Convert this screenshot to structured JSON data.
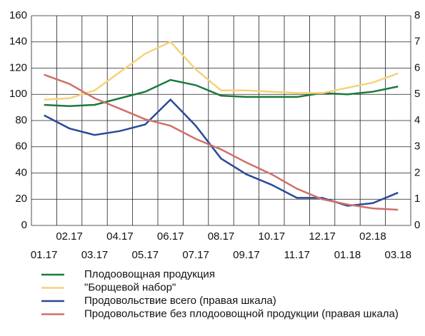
{
  "chart_data": {
    "type": "line",
    "categories": [
      "01.17",
      "02.17",
      "03.17",
      "04.17",
      "05.17",
      "06.17",
      "07.17",
      "08.17",
      "09.17",
      "10.17",
      "11.17",
      "12.17",
      "01.18",
      "02.18",
      "03.18"
    ],
    "series": [
      {
        "name": "Плодоовощная продукция",
        "color": "#1a7a3c",
        "values": [
          92,
          91,
          92,
          97,
          102,
          111,
          107,
          99,
          98,
          98,
          98,
          101,
          100,
          102,
          106
        ]
      },
      {
        "name": "\"Борщевой набор\"",
        "color": "#f5d27a",
        "values": [
          96,
          97,
          103,
          117,
          131,
          140,
          119,
          103,
          103,
          102,
          101,
          101,
          105,
          109,
          116
        ]
      },
      {
        "name": "Продовольствие всего (правая шкала)",
        "color": "#2a4a9a",
        "axis": "y2",
        "values": [
          4.2,
          3.7,
          3.45,
          3.6,
          3.85,
          4.8,
          3.8,
          2.55,
          1.95,
          1.55,
          1.05,
          1.05,
          0.75,
          0.85,
          1.25
        ]
      },
      {
        "name": "Продовольствие без плодоовощной продукции (правая шкала)",
        "color": "#d0706a",
        "axis": "y2",
        "values": [
          5.75,
          5.4,
          4.85,
          4.45,
          4.05,
          3.8,
          3.3,
          2.9,
          2.4,
          1.95,
          1.4,
          1.0,
          0.8,
          0.65,
          0.6
        ]
      }
    ],
    "ylim": [
      0,
      160
    ],
    "yticks": [
      0,
      20,
      40,
      60,
      80,
      100,
      120,
      140,
      160
    ],
    "y2lim": [
      0,
      8
    ],
    "y2ticks": [
      0,
      1,
      2,
      3,
      4,
      5,
      6,
      7,
      8
    ],
    "grid": true
  }
}
